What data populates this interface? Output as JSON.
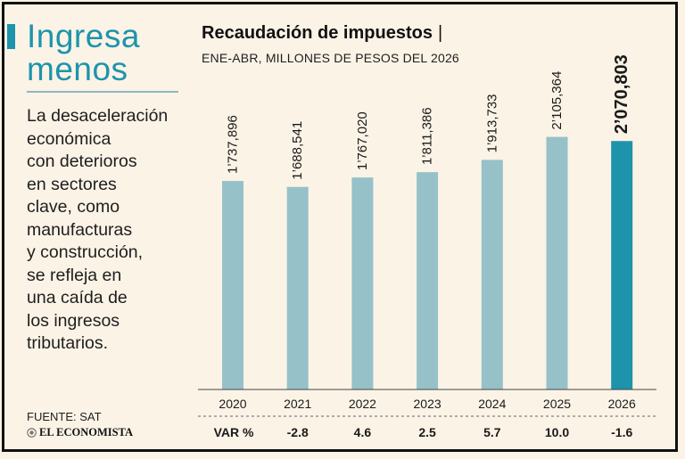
{
  "left_panel": {
    "headline_line1": "Ingresa",
    "headline_line2": "menos",
    "body_lines": [
      "La desaceleración",
      "económica",
      "con deterioros",
      "en sectores",
      "clave, como",
      "manufacturas",
      "y construcción,",
      "se refleja en",
      "una caída de",
      "los ingresos",
      "tributarios."
    ],
    "source": "FUENTE: SAT",
    "brand": "EL ECONOMISTA"
  },
  "chart_data": {
    "type": "bar",
    "title": "Recaudación de impuestos",
    "title_separator": "|",
    "subtitle": "ENE-ABR, MILLONES DE PESOS DEL 2026",
    "categories": [
      "2020",
      "2021",
      "2022",
      "2023",
      "2024",
      "2025",
      "2026"
    ],
    "values": [
      1737896,
      1688541,
      1767020,
      1811386,
      1913733,
      2105364,
      2070803
    ],
    "value_labels": [
      "1’737,896",
      "1’688,541",
      "1’767,020",
      "1’811,386",
      "1’913,733",
      "2’105,364",
      "2’070,803"
    ],
    "var_label": "VAR %",
    "var_values": [
      "",
      "-2.8",
      "4.6",
      "2.5",
      "5.7",
      "10.0",
      "-1.6"
    ],
    "highlight_index": 6,
    "ylim": [
      0,
      2600000
    ],
    "grid": false
  },
  "colors": {
    "background": "#fbf3e6",
    "accent": "#1d94ac",
    "bar": "#96c1c9",
    "bar_highlight": "#1d94ac"
  }
}
